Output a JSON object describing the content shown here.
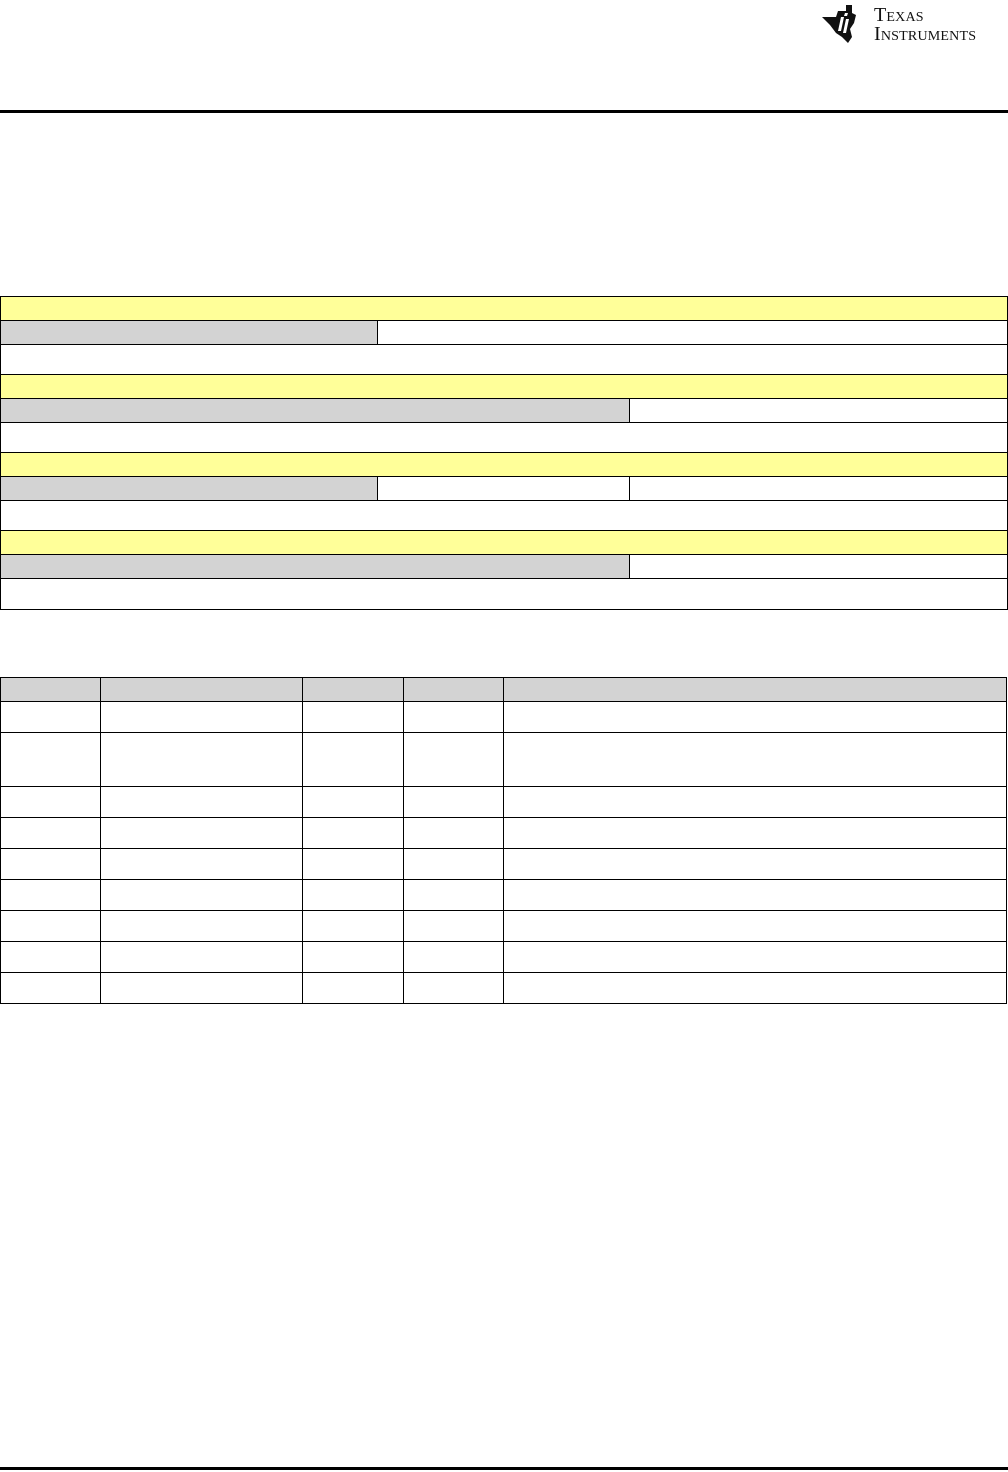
{
  "header": {
    "logo": {
      "text_line1": "Texas",
      "text_line2": "Instruments",
      "icon": "ti-logo-icon"
    }
  },
  "register_diagram": {
    "colors": {
      "bit_row": "#ffff99",
      "field_gray": "#d3d3d3"
    },
    "blocks": [
      {
        "cells": [
          "",
          ""
        ]
      },
      {
        "cells": [
          "",
          ""
        ]
      },
      {
        "cells": [
          "",
          "",
          ""
        ]
      },
      {
        "cells": [
          "",
          ""
        ]
      }
    ]
  },
  "field_table": {
    "columns": [
      "",
      "",
      "",
      "",
      ""
    ],
    "rows": [
      [
        "",
        "",
        "",
        "",
        ""
      ],
      [
        "",
        "",
        "",
        "",
        ""
      ],
      [
        "",
        "",
        "",
        "",
        ""
      ],
      [
        "",
        "",
        "",
        "",
        ""
      ],
      [
        "",
        "",
        "",
        "",
        ""
      ],
      [
        "",
        "",
        "",
        "",
        ""
      ],
      [
        "",
        "",
        "",
        "",
        ""
      ],
      [
        "",
        "",
        "",
        "",
        ""
      ],
      [
        "",
        "",
        "",
        "",
        ""
      ]
    ]
  }
}
